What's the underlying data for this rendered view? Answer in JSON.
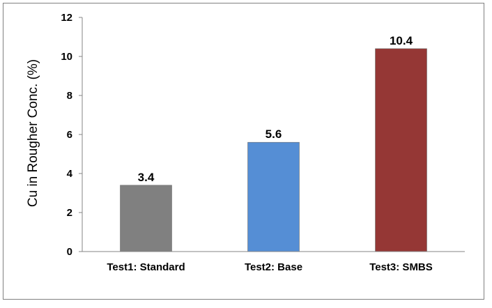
{
  "chart_data": {
    "type": "bar",
    "title": "",
    "xlabel": "",
    "ylabel": "Cu in Rougher Conc. (%)",
    "ylim": [
      0,
      12
    ],
    "yticks": [
      0,
      2,
      4,
      6,
      8,
      10,
      12
    ],
    "grid": false,
    "legend": "none",
    "categories": [
      "Test1: Standard",
      "Test2: Base",
      "Test3: SMBS"
    ],
    "values": [
      3.4,
      5.6,
      10.4
    ],
    "data_labels": [
      "3.4",
      "5.6",
      "10.4"
    ],
    "colors": [
      "#808080",
      "#558ED5",
      "#953735"
    ]
  }
}
